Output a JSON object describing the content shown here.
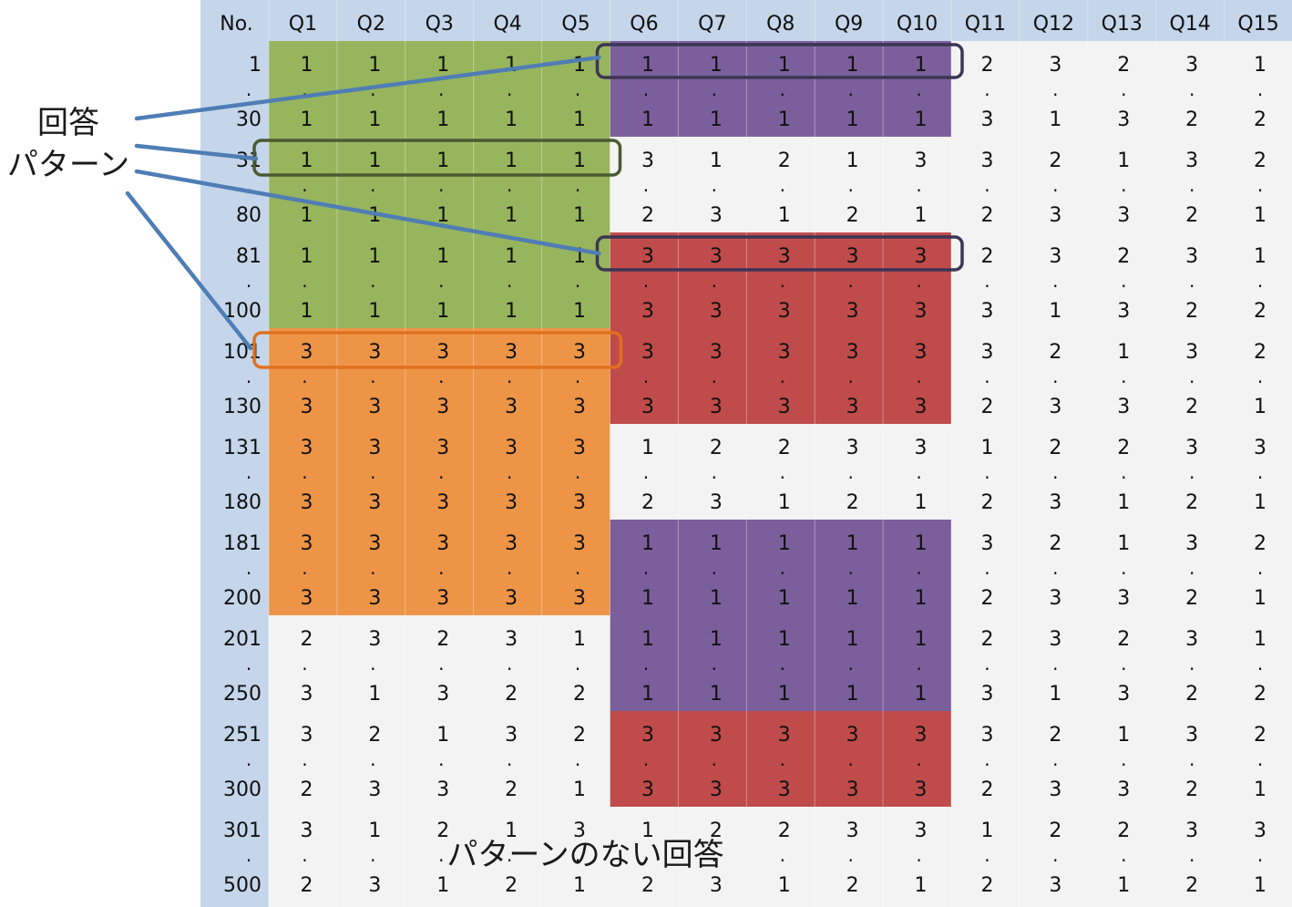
{
  "table": {
    "headers": [
      "No.",
      "Q1",
      "Q2",
      "Q3",
      "Q4",
      "Q5",
      "Q6",
      "Q7",
      "Q8",
      "Q9",
      "Q10",
      "Q11",
      "Q12",
      "Q13",
      "Q14",
      "Q15"
    ],
    "rows": [
      {
        "no": "1",
        "values": [
          "1",
          "1",
          "1",
          "1",
          "1",
          "1",
          "1",
          "1",
          "1",
          "1",
          "2",
          "3",
          "2",
          "3",
          "1"
        ]
      },
      {
        "no": "30",
        "values": [
          "1",
          "1",
          "1",
          "1",
          "1",
          "1",
          "1",
          "1",
          "1",
          "1",
          "3",
          "1",
          "3",
          "2",
          "2"
        ]
      },
      {
        "no": "31",
        "values": [
          "1",
          "1",
          "1",
          "1",
          "1",
          "3",
          "1",
          "2",
          "1",
          "3",
          "3",
          "2",
          "1",
          "3",
          "2"
        ]
      },
      {
        "no": "80",
        "values": [
          "1",
          "1",
          "1",
          "1",
          "1",
          "2",
          "3",
          "1",
          "2",
          "1",
          "2",
          "3",
          "3",
          "2",
          "1"
        ]
      },
      {
        "no": "81",
        "values": [
          "1",
          "1",
          "1",
          "1",
          "1",
          "3",
          "3",
          "3",
          "3",
          "3",
          "2",
          "3",
          "2",
          "3",
          "1"
        ]
      },
      {
        "no": "100",
        "values": [
          "1",
          "1",
          "1",
          "1",
          "1",
          "3",
          "3",
          "3",
          "3",
          "3",
          "3",
          "1",
          "3",
          "2",
          "2"
        ]
      },
      {
        "no": "101",
        "values": [
          "3",
          "3",
          "3",
          "3",
          "3",
          "3",
          "3",
          "3",
          "3",
          "3",
          "3",
          "2",
          "1",
          "3",
          "2"
        ]
      },
      {
        "no": "130",
        "values": [
          "3",
          "3",
          "3",
          "3",
          "3",
          "3",
          "3",
          "3",
          "3",
          "3",
          "2",
          "3",
          "3",
          "2",
          "1"
        ]
      },
      {
        "no": "131",
        "values": [
          "3",
          "3",
          "3",
          "3",
          "3",
          "1",
          "2",
          "2",
          "3",
          "3",
          "1",
          "2",
          "2",
          "3",
          "3"
        ]
      },
      {
        "no": "180",
        "values": [
          "3",
          "3",
          "3",
          "3",
          "3",
          "2",
          "3",
          "1",
          "2",
          "1",
          "2",
          "3",
          "1",
          "2",
          "1"
        ]
      },
      {
        "no": "181",
        "values": [
          "3",
          "3",
          "3",
          "3",
          "3",
          "1",
          "1",
          "1",
          "1",
          "1",
          "3",
          "2",
          "1",
          "3",
          "2"
        ]
      },
      {
        "no": "200",
        "values": [
          "3",
          "3",
          "3",
          "3",
          "3",
          "1",
          "1",
          "1",
          "1",
          "1",
          "2",
          "3",
          "3",
          "2",
          "1"
        ]
      },
      {
        "no": "201",
        "values": [
          "2",
          "3",
          "2",
          "3",
          "1",
          "1",
          "1",
          "1",
          "1",
          "1",
          "2",
          "3",
          "2",
          "3",
          "1"
        ]
      },
      {
        "no": "250",
        "values": [
          "3",
          "1",
          "3",
          "2",
          "2",
          "1",
          "1",
          "1",
          "1",
          "1",
          "3",
          "1",
          "3",
          "2",
          "2"
        ]
      },
      {
        "no": "251",
        "values": [
          "3",
          "2",
          "1",
          "3",
          "2",
          "3",
          "3",
          "3",
          "3",
          "3",
          "3",
          "2",
          "1",
          "3",
          "2"
        ]
      },
      {
        "no": "300",
        "values": [
          "2",
          "3",
          "3",
          "2",
          "1",
          "3",
          "3",
          "3",
          "3",
          "3",
          "2",
          "3",
          "3",
          "2",
          "1"
        ]
      },
      {
        "no": "301",
        "values": [
          "3",
          "1",
          "2",
          "1",
          "3",
          "1",
          "2",
          "2",
          "3",
          "3",
          "1",
          "2",
          "2",
          "3",
          "3"
        ]
      },
      {
        "no": "500",
        "values": [
          "2",
          "3",
          "1",
          "2",
          "1",
          "2",
          "3",
          "1",
          "2",
          "1",
          "2",
          "3",
          "1",
          "2",
          "1"
        ]
      }
    ],
    "ellipsis": "."
  },
  "annotations": {
    "pattern_label_line1": "回答",
    "pattern_label_line2": "パターン",
    "no_pattern_label": "パターンのない回答"
  },
  "colors": {
    "header_bg": "#c5d6ea",
    "no_col_bg": "#c5d6ea",
    "body_bg": "#f3f3f3",
    "green": "#97b55d",
    "orange": "#ed9447",
    "purple": "#7b5f9c",
    "red": "#bf4c4a",
    "arrow": "#4f7db5",
    "box_dark": "#3d3555",
    "box_green": "#4a5a33",
    "box_orange": "#e0701f",
    "grid": "#ffffff"
  }
}
